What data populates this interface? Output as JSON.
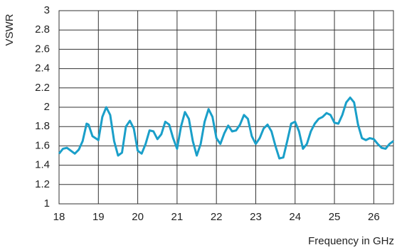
{
  "chart_data": {
    "type": "line",
    "y_label": "VSWR",
    "x_label": "Frequency in GHz",
    "x": [
      18.0,
      18.1,
      18.2,
      18.3,
      18.4,
      18.5,
      18.6,
      18.7,
      18.75,
      18.85,
      19.0,
      19.1,
      19.2,
      19.3,
      19.4,
      19.5,
      19.6,
      19.7,
      19.8,
      19.9,
      20.0,
      20.1,
      20.2,
      20.3,
      20.4,
      20.5,
      20.6,
      20.7,
      20.8,
      20.9,
      21.0,
      21.1,
      21.2,
      21.3,
      21.4,
      21.5,
      21.6,
      21.7,
      21.8,
      21.9,
      22.0,
      22.1,
      22.2,
      22.3,
      22.4,
      22.5,
      22.6,
      22.7,
      22.8,
      22.9,
      23.0,
      23.1,
      23.2,
      23.3,
      23.4,
      23.5,
      23.6,
      23.7,
      23.8,
      23.9,
      24.0,
      24.1,
      24.2,
      24.3,
      24.4,
      24.5,
      24.6,
      24.7,
      24.8,
      24.9,
      25.0,
      25.1,
      25.2,
      25.3,
      25.4,
      25.5,
      25.6,
      25.7,
      25.8,
      25.9,
      26.0,
      26.1,
      26.2,
      26.3,
      26.4,
      26.5
    ],
    "series": [
      {
        "name": "VSWR",
        "color": "#1a9fc9",
        "values": [
          1.52,
          1.57,
          1.58,
          1.55,
          1.52,
          1.56,
          1.65,
          1.83,
          1.82,
          1.7,
          1.66,
          1.9,
          2.0,
          1.92,
          1.65,
          1.5,
          1.53,
          1.8,
          1.86,
          1.78,
          1.55,
          1.52,
          1.62,
          1.76,
          1.75,
          1.67,
          1.72,
          1.85,
          1.82,
          1.68,
          1.57,
          1.8,
          1.95,
          1.88,
          1.65,
          1.5,
          1.62,
          1.85,
          1.98,
          1.9,
          1.68,
          1.62,
          1.73,
          1.81,
          1.75,
          1.76,
          1.82,
          1.92,
          1.88,
          1.7,
          1.62,
          1.68,
          1.78,
          1.82,
          1.75,
          1.6,
          1.47,
          1.48,
          1.65,
          1.83,
          1.85,
          1.75,
          1.57,
          1.62,
          1.75,
          1.83,
          1.88,
          1.9,
          1.94,
          1.92,
          1.84,
          1.83,
          1.92,
          2.05,
          2.1,
          2.05,
          1.82,
          1.68,
          1.66,
          1.68,
          1.67,
          1.62,
          1.58,
          1.57,
          1.62,
          1.65
        ]
      }
    ],
    "xlim": [
      18,
      26.5
    ],
    "xticks": [
      18,
      19,
      20,
      21,
      22,
      23,
      24,
      25,
      26
    ],
    "ylim": [
      1,
      3
    ],
    "yticks": [
      1,
      1.2,
      1.4,
      1.6,
      1.8,
      2,
      2.2,
      2.4,
      2.6,
      2.8,
      3
    ],
    "grid": true
  }
}
